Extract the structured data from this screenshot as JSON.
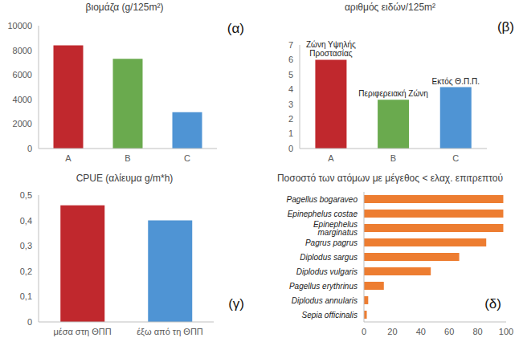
{
  "chart_data": [
    {
      "type": "bar",
      "title": "βιομάζα (g/125m²)",
      "label": "(α)",
      "categories": [
        "A",
        "B",
        "C"
      ],
      "values": [
        8400,
        7300,
        2950
      ],
      "colors": [
        "#c0282d",
        "#6aaa4e",
        "#4f94d4"
      ],
      "ylim": [
        0,
        10000
      ],
      "yticks": [
        0,
        2000,
        4000,
        6000,
        8000,
        10000
      ],
      "grid": false
    },
    {
      "type": "bar",
      "title": "αριθμός ειδών/125m²",
      "label": "(β)",
      "categories": [
        "A",
        "B",
        "C"
      ],
      "values": [
        6,
        3.3,
        4.15
      ],
      "colors": [
        "#c0282d",
        "#6aaa4e",
        "#4f94d4"
      ],
      "annotations": [
        {
          "category": "A",
          "text": "Ζώνη Υψηλής Προστασίας"
        },
        {
          "category": "B",
          "text": "Περιφερειακή Ζώνη"
        },
        {
          "category": "C",
          "text": "Εκτός Θ.Π.Π."
        }
      ],
      "ylim": [
        0,
        7
      ],
      "yticks": [
        0,
        1,
        2,
        3,
        4,
        5,
        6,
        7
      ],
      "grid": false
    },
    {
      "type": "bar",
      "title": "CPUE (αλίευμα g/m*h)",
      "label": "(γ)",
      "categories": [
        "μέσα στη ΘΠΠ",
        "έξω από τη ΘΠΠ"
      ],
      "values": [
        0.46,
        0.4
      ],
      "colors": [
        "#c0282d",
        "#4f94d4"
      ],
      "ylim": [
        0,
        0.5
      ],
      "yticks": [
        0,
        {
          "value": 0.1,
          "label": "0,1"
        },
        {
          "value": 0.2,
          "label": "0,2"
        },
        {
          "value": 0.3,
          "label": "0,3"
        },
        {
          "value": 0.4,
          "label": "0,4"
        },
        {
          "value": 0.5,
          "label": "0,5"
        }
      ],
      "grid": false
    },
    {
      "type": "bar",
      "orientation": "horizontal",
      "title": "Ποσοστό των ατόμων με μέγεθος < ελαχ. επιτρεπτού",
      "label": "(δ)",
      "categories": [
        "Pagellus bogaraveo",
        "Epinephelus costae",
        "Epinephelus marginatus",
        "Pagrus pagrus",
        "Diplodus sargus",
        "Diplodus vulgaris",
        "Pagellus erythrinus",
        "Diplodus annularis",
        "Sepia officinalis"
      ],
      "values": [
        98,
        98,
        98,
        86,
        67,
        47,
        14,
        3,
        2
      ],
      "color": "#ed7d31",
      "xlim": [
        0,
        100
      ],
      "xticks": [
        0,
        20,
        40,
        60,
        80,
        100
      ],
      "grid": false
    }
  ]
}
